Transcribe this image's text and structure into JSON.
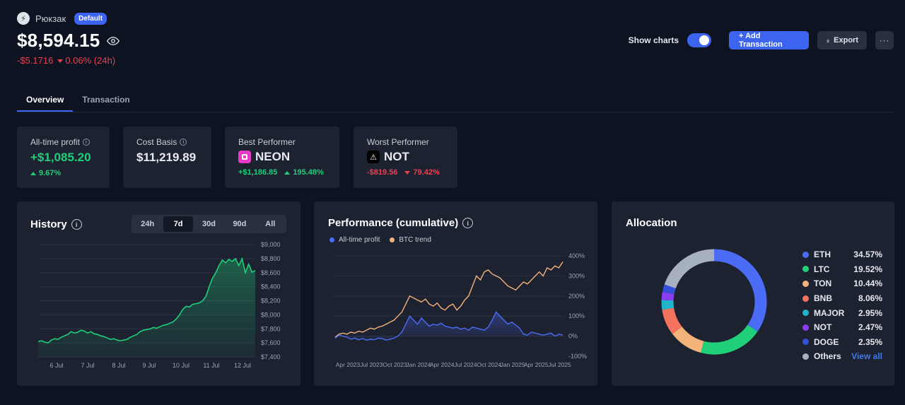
{
  "header": {
    "account_name": "Рюкзак",
    "badge": "Default",
    "balance": "$8,594.15",
    "change_abs": "-$5.1716",
    "change_pct": "0.06% (24h)",
    "show_charts_label": "Show charts",
    "show_charts_on": true,
    "add_transaction_label": "+ Add Transaction",
    "export_label": "Export",
    "more_label": "···"
  },
  "tabs": [
    {
      "label": "Overview",
      "active": true
    },
    {
      "label": "Transaction",
      "active": false
    }
  ],
  "stats": {
    "all_time_profit": {
      "title": "All-time profit",
      "value": "+$1,085.20",
      "pct": "9.67%"
    },
    "cost_basis": {
      "title": "Cost Basis",
      "value": "$11,219.89"
    },
    "best_performer": {
      "title": "Best Performer",
      "coin": "NEON",
      "abs": "+$1,186.85",
      "pct": "195.48%"
    },
    "worst_performer": {
      "title": "Worst Performer",
      "coin": "NOT",
      "abs": "-$819.56",
      "pct": "79.42%"
    }
  },
  "history": {
    "title": "History",
    "ranges": [
      "24h",
      "7d",
      "30d",
      "90d",
      "All"
    ],
    "active_range": "7d"
  },
  "performance": {
    "title": "Performance (cumulative)",
    "legend": [
      {
        "label": "All-time profit",
        "color": "#4a6cf7"
      },
      {
        "label": "BTC trend",
        "color": "#f3b27a"
      }
    ]
  },
  "allocation": {
    "title": "Allocation",
    "items": [
      {
        "name": "ETH",
        "pct": "34.57%",
        "color": "#4a6cf7"
      },
      {
        "name": "LTC",
        "pct": "19.52%",
        "color": "#1fcf7a"
      },
      {
        "name": "TON",
        "pct": "10.44%",
        "color": "#f3b27a"
      },
      {
        "name": "BNB",
        "pct": "8.06%",
        "color": "#f3735e"
      },
      {
        "name": "MAJOR",
        "pct": "2.95%",
        "color": "#22b5c9"
      },
      {
        "name": "NOT",
        "pct": "2.47%",
        "color": "#8b3df0"
      },
      {
        "name": "DOGE",
        "pct": "2.35%",
        "color": "#3550d8"
      },
      {
        "name": "Others",
        "pct": "",
        "color": "#a7b0bf"
      }
    ],
    "view_all_label": "View all"
  },
  "chart_data": [
    {
      "type": "area",
      "title": "History",
      "x_ticks": [
        "6 Jul",
        "7 Jul",
        "8 Jul",
        "9 Jul",
        "10 Jul",
        "11 Jul",
        "12 Jul"
      ],
      "y_ticks": [
        "$9,000",
        "$8,800",
        "$8,600",
        "$8,400",
        "$8,200",
        "$8,000",
        "$7,800",
        "$7,600",
        "$7,400"
      ],
      "ylim": [
        7400,
        9000
      ],
      "series": [
        {
          "values": [
            7620,
            7630,
            7610,
            7600,
            7640,
            7660,
            7650,
            7680,
            7700,
            7720,
            7760,
            7740,
            7750,
            7780,
            7770,
            7740,
            7760,
            7730,
            7720,
            7700,
            7690,
            7670,
            7650,
            7660,
            7640,
            7630,
            7640,
            7650,
            7680,
            7700,
            7720,
            7760,
            7780,
            7790,
            7800,
            7820,
            7810,
            7830,
            7850,
            7860,
            7880,
            7900,
            7940,
            8000,
            8080,
            8120,
            8110,
            8150,
            8160,
            8170,
            8200,
            8260,
            8400,
            8520,
            8600,
            8700,
            8780,
            8740,
            8790,
            8760,
            8800,
            8700,
            8800,
            8600,
            8720,
            8610,
            8630
          ]
        }
      ]
    },
    {
      "type": "line",
      "title": "Performance (cumulative)",
      "x_ticks": [
        "Apr 2023",
        "Jul 2023",
        "Oct 2023",
        "Jan 2024",
        "Apr 2024",
        "Jul 2024",
        "Oct 2024",
        "Jan 2025",
        "Apr 2025",
        "Jul 2025"
      ],
      "y_ticks": [
        "400%",
        "300%",
        "200%",
        "100%",
        "0%",
        "-100%"
      ],
      "ylim": [
        -100,
        400
      ],
      "series": [
        {
          "name": "All-time profit",
          "values": [
            -10,
            5,
            0,
            -5,
            -15,
            -10,
            -18,
            -12,
            -20,
            -15,
            -18,
            -10,
            -12,
            -20,
            -15,
            -10,
            0,
            20,
            60,
            100,
            80,
            60,
            90,
            70,
            50,
            60,
            55,
            65,
            50,
            45,
            40,
            45,
            35,
            40,
            30,
            45,
            40,
            35,
            30,
            45,
            80,
            120,
            100,
            80,
            60,
            70,
            55,
            40,
            10,
            5,
            20,
            15,
            10,
            5,
            10,
            15,
            0,
            10,
            5
          ]
        },
        {
          "name": "BTC trend",
          "values": [
            -5,
            10,
            15,
            10,
            20,
            15,
            25,
            20,
            30,
            40,
            35,
            45,
            50,
            60,
            70,
            80,
            100,
            120,
            160,
            200,
            190,
            180,
            170,
            185,
            160,
            150,
            165,
            140,
            130,
            150,
            160,
            130,
            150,
            180,
            200,
            250,
            300,
            280,
            320,
            330,
            310,
            300,
            290,
            270,
            250,
            240,
            230,
            250,
            270,
            260,
            280,
            300,
            320,
            300,
            340,
            330,
            350,
            340,
            370
          ]
        }
      ]
    },
    {
      "type": "pie",
      "title": "Allocation",
      "categories": [
        "ETH",
        "LTC",
        "TON",
        "BNB",
        "MAJOR",
        "NOT",
        "DOGE",
        "Others"
      ],
      "values": [
        34.57,
        19.52,
        10.44,
        8.06,
        2.95,
        2.47,
        2.35,
        19.64
      ]
    }
  ]
}
